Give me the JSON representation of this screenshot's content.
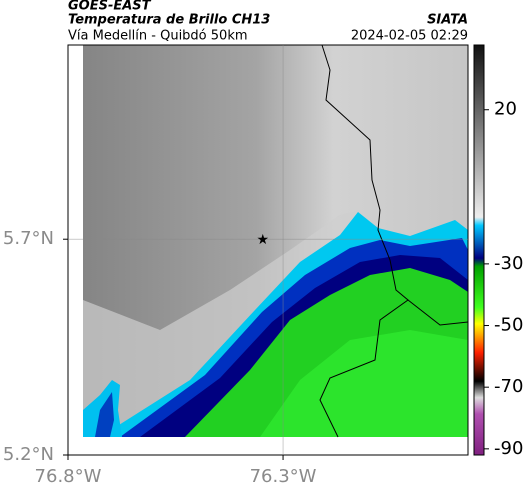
{
  "header": {
    "source": "GOES-EAST",
    "product": "Temperatura de Brillo CH13",
    "region": "Vía Medellín - Quibdó 50km",
    "agency": "SIATA",
    "timestamp": "2024-02-05 02:29"
  },
  "map": {
    "xlim": [
      -76.8,
      -75.87
    ],
    "ylim": [
      5.2,
      6.15
    ],
    "xticks": [
      {
        "value": -76.8,
        "label": "76.8°W"
      },
      {
        "value": -76.3,
        "label": "76.3°W"
      }
    ],
    "yticks": [
      {
        "value": 5.7,
        "label": "5.7°N"
      },
      {
        "value": 5.2,
        "label": "5.2°N"
      }
    ],
    "gridlines": [
      {
        "lon": -76.3
      },
      {
        "lat": 5.7
      }
    ],
    "marker": {
      "lon": -76.347,
      "lat": 5.7
    }
  },
  "colorbar": {
    "lim": [
      41,
      -92
    ],
    "ticks": [
      20,
      -30,
      -50,
      -70,
      -90
    ]
  }
}
